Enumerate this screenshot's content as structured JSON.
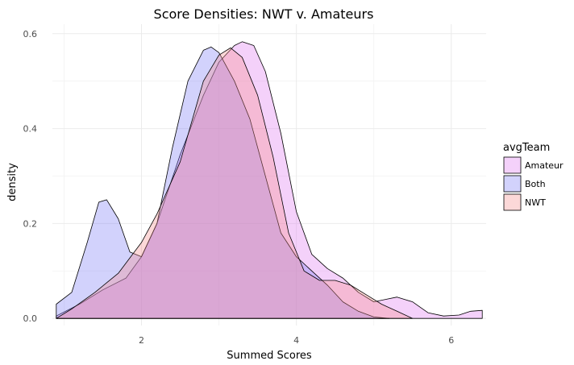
{
  "chart_data": {
    "type": "area",
    "title": "Score Densities: NWT v. Amateurs",
    "xlabel": "Summed Scores",
    "ylabel": "density",
    "xlim": [
      0.85,
      6.45
    ],
    "ylim": [
      -0.015,
      0.62
    ],
    "x_ticks": [
      2,
      4,
      6
    ],
    "y_ticks": [
      0.0,
      0.2,
      0.4,
      0.6
    ],
    "y_tick_labels": [
      "0.0",
      "0.2",
      "0.4",
      "0.6"
    ],
    "grid": true,
    "legend": {
      "title": "avgTeam",
      "position": "right",
      "entries": [
        "Amateur",
        "Both",
        "NWT"
      ]
    },
    "series": [
      {
        "name": "Amateur",
        "color": "#e07cf0",
        "points": [
          [
            0.9,
            0.005
          ],
          [
            1.2,
            0.03
          ],
          [
            1.5,
            0.06
          ],
          [
            1.8,
            0.085
          ],
          [
            2.0,
            0.13
          ],
          [
            2.2,
            0.2
          ],
          [
            2.5,
            0.345
          ],
          [
            2.8,
            0.47
          ],
          [
            3.0,
            0.54
          ],
          [
            3.2,
            0.575
          ],
          [
            3.3,
            0.583
          ],
          [
            3.45,
            0.575
          ],
          [
            3.6,
            0.52
          ],
          [
            3.8,
            0.39
          ],
          [
            4.0,
            0.225
          ],
          [
            4.2,
            0.135
          ],
          [
            4.4,
            0.105
          ],
          [
            4.6,
            0.085
          ],
          [
            4.8,
            0.055
          ],
          [
            5.0,
            0.035
          ],
          [
            5.15,
            0.04
          ],
          [
            5.3,
            0.045
          ],
          [
            5.5,
            0.035
          ],
          [
            5.7,
            0.012
          ],
          [
            5.9,
            0.005
          ],
          [
            6.1,
            0.007
          ],
          [
            6.25,
            0.015
          ],
          [
            6.4,
            0.017
          ]
        ]
      },
      {
        "name": "Both",
        "color": "#7f7ff7",
        "points": [
          [
            0.9,
            0.03
          ],
          [
            1.1,
            0.055
          ],
          [
            1.3,
            0.16
          ],
          [
            1.45,
            0.245
          ],
          [
            1.55,
            0.25
          ],
          [
            1.7,
            0.21
          ],
          [
            1.85,
            0.14
          ],
          [
            2.0,
            0.13
          ],
          [
            2.2,
            0.2
          ],
          [
            2.4,
            0.36
          ],
          [
            2.6,
            0.5
          ],
          [
            2.8,
            0.565
          ],
          [
            2.9,
            0.572
          ],
          [
            3.0,
            0.56
          ],
          [
            3.2,
            0.5
          ],
          [
            3.4,
            0.42
          ],
          [
            3.6,
            0.3
          ],
          [
            3.8,
            0.18
          ],
          [
            4.0,
            0.13
          ],
          [
            4.2,
            0.1
          ],
          [
            4.4,
            0.07
          ],
          [
            4.6,
            0.035
          ],
          [
            4.8,
            0.015
          ],
          [
            5.0,
            0.003
          ],
          [
            5.2,
            0.0
          ]
        ]
      },
      {
        "name": "NWT",
        "color": "#f7908f",
        "points": [
          [
            0.9,
            0.0
          ],
          [
            1.1,
            0.02
          ],
          [
            1.4,
            0.055
          ],
          [
            1.7,
            0.095
          ],
          [
            2.0,
            0.16
          ],
          [
            2.2,
            0.22
          ],
          [
            2.5,
            0.33
          ],
          [
            2.8,
            0.5
          ],
          [
            3.0,
            0.555
          ],
          [
            3.15,
            0.57
          ],
          [
            3.3,
            0.55
          ],
          [
            3.5,
            0.47
          ],
          [
            3.7,
            0.34
          ],
          [
            3.9,
            0.18
          ],
          [
            4.1,
            0.1
          ],
          [
            4.3,
            0.08
          ],
          [
            4.5,
            0.08
          ],
          [
            4.7,
            0.07
          ],
          [
            4.9,
            0.05
          ],
          [
            5.1,
            0.03
          ],
          [
            5.3,
            0.015
          ],
          [
            5.5,
            0.0
          ]
        ]
      }
    ]
  }
}
